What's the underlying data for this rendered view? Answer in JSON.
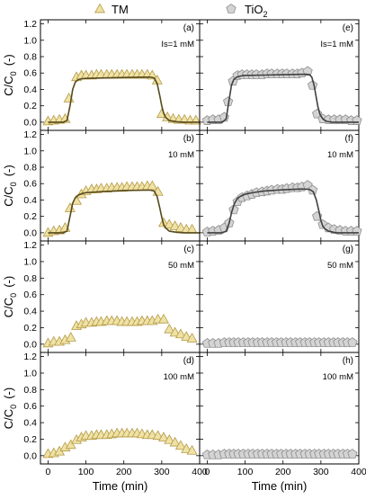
{
  "legend": [
    {
      "label": "TM",
      "marker": "triangle",
      "fill": "#efe2a6",
      "stroke": "#b59a45"
    },
    {
      "label": "TiO",
      "sub": "2",
      "marker": "pentagon",
      "fill": "#d4d4d4",
      "stroke": "#8c8c8c"
    }
  ],
  "axes": {
    "ylabel": "C/C",
    "ylabel_sub": "0",
    "ylabel_unit": "(-)",
    "xlabel": "Time (min)",
    "yticks": [
      "0.0",
      "0.2",
      "0.4",
      "0.6",
      "0.8",
      "1.0",
      "1.2"
    ],
    "xticks": [
      "0",
      "100",
      "200",
      "300",
      "400"
    ]
  },
  "colors": {
    "tm_fit": "#574a1c",
    "tio2_fit": "#404040"
  },
  "chart_data": [
    {
      "type": "scatter",
      "panel": "a",
      "column": "TM",
      "label": "(a)",
      "condition": "Is=1 mM",
      "xlim": [
        -20,
        400
      ],
      "ylim": [
        -0.1,
        1.25
      ],
      "series": [
        {
          "name": "TM",
          "role": "measured",
          "x": [
            0,
            15,
            30,
            45,
            55,
            75,
            88,
            100,
            115,
            128,
            140,
            155,
            168,
            182,
            195,
            208,
            222,
            235,
            248,
            262,
            275,
            288,
            300,
            315,
            330,
            345,
            360,
            375,
            390
          ],
          "y": [
            0.01,
            0.02,
            0.03,
            0.04,
            0.29,
            0.55,
            0.57,
            0.57,
            0.57,
            0.58,
            0.58,
            0.58,
            0.58,
            0.58,
            0.58,
            0.58,
            0.58,
            0.58,
            0.58,
            0.58,
            0.57,
            0.51,
            0.1,
            0.06,
            0.04,
            0.03,
            0.03,
            0.02,
            0.02
          ]
        },
        {
          "role": "fit",
          "x": [
            0,
            40,
            50,
            58,
            65,
            72,
            80,
            90,
            100,
            150,
            200,
            250,
            270,
            280,
            288,
            295,
            300,
            305,
            310,
            320,
            340,
            360,
            400
          ],
          "y": [
            0.0,
            0.0,
            0.02,
            0.2,
            0.4,
            0.49,
            0.52,
            0.53,
            0.535,
            0.54,
            0.545,
            0.55,
            0.55,
            0.54,
            0.47,
            0.32,
            0.2,
            0.11,
            0.06,
            0.02,
            0.005,
            0.0,
            0.0
          ]
        }
      ]
    },
    {
      "type": "scatter",
      "panel": "e",
      "column": "TiO2",
      "label": "(e)",
      "condition": "Is=1 mM",
      "xlim": [
        -20,
        400
      ],
      "ylim": [
        -0.1,
        1.25
      ],
      "series": [
        {
          "name": "TiO2",
          "role": "measured",
          "x": [
            0,
            15,
            30,
            45,
            55,
            68,
            80,
            92,
            105,
            118,
            130,
            145,
            158,
            170,
            185,
            198,
            210,
            225,
            238,
            250,
            265,
            278,
            290,
            305,
            320,
            335,
            350,
            365,
            380,
            395
          ],
          "y": [
            0.02,
            0.03,
            0.03,
            0.06,
            0.25,
            0.5,
            0.57,
            0.58,
            0.58,
            0.58,
            0.58,
            0.58,
            0.59,
            0.59,
            0.59,
            0.59,
            0.59,
            0.59,
            0.59,
            0.6,
            0.62,
            0.45,
            0.1,
            0.04,
            0.03,
            0.03,
            0.03,
            0.03,
            0.02,
            0.02
          ]
        },
        {
          "role": "fit",
          "x": [
            0,
            40,
            50,
            57,
            64,
            70,
            78,
            85,
            95,
            150,
            200,
            260,
            270,
            276,
            282,
            287,
            292,
            298,
            305,
            315,
            330,
            360,
            400
          ],
          "y": [
            0.0,
            0.0,
            0.04,
            0.25,
            0.45,
            0.52,
            0.55,
            0.56,
            0.57,
            0.575,
            0.58,
            0.585,
            0.58,
            0.55,
            0.45,
            0.32,
            0.19,
            0.09,
            0.04,
            0.01,
            0.0,
            0.0,
            0.0
          ]
        }
      ]
    },
    {
      "type": "scatter",
      "panel": "b",
      "column": "TM",
      "label": "(b)",
      "condition": "10 mM",
      "xlim": [
        -20,
        400
      ],
      "ylim": [
        -0.1,
        1.25
      ],
      "series": [
        {
          "name": "TM",
          "role": "measured",
          "x": [
            0,
            15,
            30,
            45,
            58,
            75,
            88,
            100,
            115,
            128,
            140,
            155,
            168,
            182,
            195,
            208,
            222,
            235,
            248,
            262,
            275,
            290,
            305,
            320,
            335,
            350,
            365,
            380
          ],
          "y": [
            0.0,
            0.02,
            0.03,
            0.06,
            0.3,
            0.39,
            0.47,
            0.51,
            0.53,
            0.53,
            0.54,
            0.54,
            0.55,
            0.55,
            0.55,
            0.56,
            0.56,
            0.56,
            0.56,
            0.57,
            0.57,
            0.5,
            0.12,
            0.1,
            0.08,
            0.06,
            0.04,
            0.04
          ]
        },
        {
          "role": "fit",
          "x": [
            0,
            40,
            50,
            58,
            65,
            72,
            80,
            90,
            100,
            150,
            200,
            250,
            270,
            280,
            288,
            295,
            300,
            305,
            310,
            320,
            340,
            360,
            400
          ],
          "y": [
            0.0,
            0.0,
            0.02,
            0.2,
            0.36,
            0.43,
            0.46,
            0.48,
            0.49,
            0.505,
            0.515,
            0.52,
            0.52,
            0.51,
            0.44,
            0.3,
            0.19,
            0.1,
            0.06,
            0.02,
            0.005,
            0.0,
            0.0
          ]
        }
      ]
    },
    {
      "type": "scatter",
      "panel": "f",
      "column": "TiO2",
      "label": "(f)",
      "condition": "10 mM",
      "xlim": [
        -20,
        400
      ],
      "ylim": [
        -0.1,
        1.25
      ],
      "series": [
        {
          "name": "TiO2",
          "role": "measured",
          "x": [
            0,
            15,
            30,
            45,
            58,
            70,
            80,
            92,
            105,
            118,
            130,
            145,
            158,
            170,
            185,
            198,
            210,
            225,
            238,
            250,
            265,
            278,
            290,
            305,
            320,
            335,
            350,
            365,
            380,
            395
          ],
          "y": [
            0.01,
            0.02,
            0.03,
            0.06,
            0.12,
            0.28,
            0.38,
            0.43,
            0.45,
            0.47,
            0.49,
            0.5,
            0.51,
            0.52,
            0.53,
            0.53,
            0.54,
            0.55,
            0.55,
            0.56,
            0.58,
            0.52,
            0.2,
            0.1,
            0.06,
            0.04,
            0.03,
            0.02,
            0.02,
            0.02
          ]
        },
        {
          "role": "fit",
          "x": [
            0,
            40,
            50,
            58,
            65,
            72,
            80,
            90,
            100,
            120,
            150,
            200,
            250,
            270,
            280,
            288,
            295,
            300,
            305,
            310,
            320,
            340,
            360,
            400
          ],
          "y": [
            0.0,
            0.0,
            0.02,
            0.12,
            0.26,
            0.36,
            0.42,
            0.45,
            0.47,
            0.49,
            0.51,
            0.525,
            0.535,
            0.53,
            0.5,
            0.4,
            0.26,
            0.15,
            0.08,
            0.05,
            0.02,
            0.0,
            0.0,
            0.0
          ]
        }
      ]
    },
    {
      "type": "scatter",
      "panel": "c",
      "column": "TM",
      "label": "(c)",
      "condition": "50 mM",
      "xlim": [
        -20,
        400
      ],
      "ylim": [
        -0.1,
        1.25
      ],
      "series": [
        {
          "name": "TM",
          "role": "measured",
          "x": [
            0,
            15,
            30,
            45,
            60,
            75,
            88,
            100,
            115,
            128,
            140,
            155,
            168,
            182,
            195,
            208,
            222,
            235,
            248,
            262,
            275,
            290,
            305,
            320,
            335,
            350,
            365,
            380
          ],
          "y": [
            0.01,
            0.03,
            0.03,
            0.05,
            0.08,
            0.22,
            0.24,
            0.26,
            0.26,
            0.27,
            0.27,
            0.28,
            0.28,
            0.28,
            0.27,
            0.27,
            0.27,
            0.27,
            0.28,
            0.28,
            0.28,
            0.3,
            0.3,
            0.18,
            0.14,
            0.12,
            0.09,
            0.07
          ]
        }
      ]
    },
    {
      "type": "scatter",
      "panel": "g",
      "column": "TiO2",
      "label": "(g)",
      "condition": "50 mM",
      "xlim": [
        -20,
        400
      ],
      "ylim": [
        -0.1,
        1.25
      ],
      "series": [
        {
          "name": "TiO2",
          "role": "measured",
          "x": [
            0,
            15,
            30,
            45,
            58,
            70,
            82,
            95,
            108,
            120,
            133,
            145,
            158,
            170,
            183,
            195,
            208,
            220,
            233,
            245,
            258,
            270,
            283,
            295,
            308,
            320,
            333,
            345,
            358,
            370,
            383
          ],
          "y": [
            0.01,
            0.01,
            0.01,
            0.02,
            0.02,
            0.02,
            0.02,
            0.02,
            0.02,
            0.02,
            0.02,
            0.02,
            0.02,
            0.02,
            0.02,
            0.02,
            0.02,
            0.02,
            0.02,
            0.02,
            0.02,
            0.02,
            0.02,
            0.02,
            0.02,
            0.02,
            0.02,
            0.02,
            0.02,
            0.02,
            0.02
          ]
        }
      ]
    },
    {
      "type": "scatter",
      "panel": "d",
      "column": "TM",
      "label": "(d)",
      "condition": "100 mM",
      "xlim": [
        -20,
        400
      ],
      "ylim": [
        -0.1,
        1.25
      ],
      "series": [
        {
          "name": "TM",
          "role": "measured",
          "x": [
            0,
            15,
            30,
            45,
            60,
            75,
            88,
            100,
            115,
            128,
            140,
            155,
            168,
            182,
            195,
            208,
            222,
            235,
            248,
            262,
            275,
            290,
            305,
            320,
            335,
            350,
            365,
            380
          ],
          "y": [
            0.02,
            0.03,
            0.05,
            0.1,
            0.13,
            0.19,
            0.22,
            0.24,
            0.24,
            0.25,
            0.25,
            0.25,
            0.26,
            0.27,
            0.27,
            0.27,
            0.27,
            0.27,
            0.26,
            0.25,
            0.25,
            0.24,
            0.22,
            0.19,
            0.16,
            0.12,
            0.08,
            0.06
          ]
        }
      ]
    },
    {
      "type": "scatter",
      "panel": "h",
      "column": "TiO2",
      "label": "(h)",
      "condition": "100 mM",
      "xlim": [
        -20,
        400
      ],
      "ylim": [
        -0.1,
        1.25
      ],
      "series": [
        {
          "name": "TiO2",
          "role": "measured",
          "x": [
            0,
            15,
            30,
            45,
            58,
            70,
            82,
            95,
            108,
            120,
            133,
            145,
            158,
            170,
            183,
            195,
            208,
            220,
            233,
            245,
            258,
            270,
            283,
            295,
            308,
            320,
            333,
            345,
            358,
            370,
            383
          ],
          "y": [
            0.01,
            0.01,
            0.01,
            0.02,
            0.02,
            0.02,
            0.02,
            0.02,
            0.02,
            0.02,
            0.02,
            0.02,
            0.02,
            0.02,
            0.02,
            0.02,
            0.02,
            0.02,
            0.02,
            0.02,
            0.02,
            0.02,
            0.02,
            0.02,
            0.02,
            0.02,
            0.02,
            0.02,
            0.02,
            0.02,
            0.02
          ]
        }
      ]
    }
  ]
}
